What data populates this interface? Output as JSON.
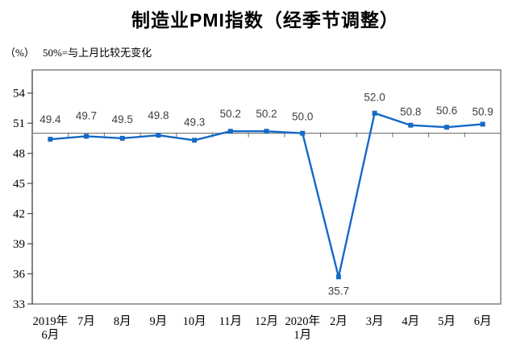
{
  "header": {
    "title": "制造业PMI指数（经季节调整）",
    "unit": "（%）",
    "note": "50%=与上月比较无变化"
  },
  "chart_data": {
    "type": "line",
    "title": "制造业PMI指数（经季节调整）",
    "categories": [
      "2019年\n6月",
      "7月",
      "8月",
      "9月",
      "10月",
      "11月",
      "12月",
      "2020年\n1月",
      "2月",
      "3月",
      "4月",
      "5月",
      "6月"
    ],
    "values": [
      49.4,
      49.7,
      49.5,
      49.8,
      49.3,
      50.2,
      50.2,
      50.0,
      35.7,
      52.0,
      50.8,
      50.6,
      50.9
    ],
    "ylabel": "（%）",
    "annotation": "50%=与上月比较无变化",
    "ylim": [
      33,
      56.3
    ],
    "yticks": [
      33,
      36,
      39,
      42,
      45,
      48,
      51,
      54
    ],
    "reference_line": 50,
    "grid": false,
    "legend_position": "none",
    "marker": "square",
    "line_color": "#1569C7",
    "data_label_color": "#404040",
    "axis_color": "#4d4d4d",
    "border_color": "#6e6e6e",
    "layout": {
      "label_dy": [
        -20,
        -21,
        -19,
        -20,
        -18,
        -17,
        -17,
        -16,
        22,
        -15,
        -12,
        -16,
        -11
      ]
    }
  }
}
